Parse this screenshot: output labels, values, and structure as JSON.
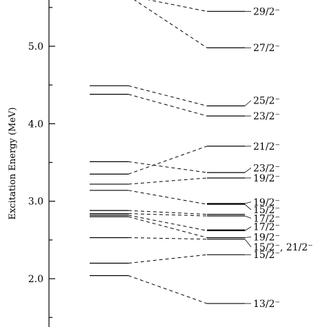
{
  "chart_data": {
    "type": "level-scheme",
    "ylabel": "Excitation Energy (MeV)",
    "ylim": [
      1.55,
      5.6
    ],
    "yticks": [
      {
        "value": 2.0,
        "label": "2.0"
      },
      {
        "value": 3.0,
        "label": "3.0"
      },
      {
        "value": 4.0,
        "label": "4.0"
      },
      {
        "value": 5.0,
        "label": "5.0"
      }
    ],
    "left_levels": [
      2.04,
      2.2,
      2.53,
      2.8,
      2.82,
      2.84,
      2.88,
      3.14,
      3.22,
      3.35,
      3.51,
      4.38,
      4.49
    ],
    "right_levels": [
      {
        "energy": 1.68,
        "label": "13/2⁻"
      },
      {
        "energy": 2.31,
        "label": "15/2⁻"
      },
      {
        "energy": 2.51,
        "label": "15/2⁻, 21/2⁻"
      },
      {
        "energy": 2.53,
        "label": "19/2⁻"
      },
      {
        "energy": 2.62,
        "label": "17/2⁻"
      },
      {
        "energy": 2.63,
        "label": ""
      },
      {
        "energy": 2.81,
        "label": "17/2⁻"
      },
      {
        "energy": 2.83,
        "label": ""
      },
      {
        "energy": 2.96,
        "label": "15/2⁻"
      },
      {
        "energy": 2.97,
        "label": "19/2⁻"
      },
      {
        "energy": 3.3,
        "label": "19/2⁻"
      },
      {
        "energy": 3.37,
        "label": "23/2⁻"
      },
      {
        "energy": 3.71,
        "label": "21/2⁻"
      },
      {
        "energy": 4.1,
        "label": "23/2⁻"
      },
      {
        "energy": 4.23,
        "label": "25/2⁻"
      },
      {
        "energy": 4.98,
        "label": "27/2⁻"
      },
      {
        "energy": 5.45,
        "label": "29/2⁻"
      }
    ],
    "label_positions": [
      1.68,
      2.31,
      2.41,
      2.54,
      2.67,
      2.78,
      2.89,
      2.99,
      3.3,
      3.43,
      3.71,
      4.1,
      4.3,
      4.98,
      5.45
    ],
    "links": [
      [
        2.04,
        1.68
      ],
      [
        2.2,
        2.31
      ],
      [
        2.53,
        2.51
      ],
      [
        2.8,
        2.53
      ],
      [
        2.82,
        2.62
      ],
      [
        2.84,
        2.81
      ],
      [
        2.88,
        2.83
      ],
      [
        3.14,
        2.96
      ],
      [
        3.22,
        3.3
      ],
      [
        3.35,
        3.71
      ],
      [
        3.51,
        3.37
      ],
      [
        4.38,
        4.1
      ],
      [
        4.49,
        4.23
      ],
      [
        5.65,
        4.98
      ],
      [
        5.65,
        5.45
      ]
    ]
  }
}
